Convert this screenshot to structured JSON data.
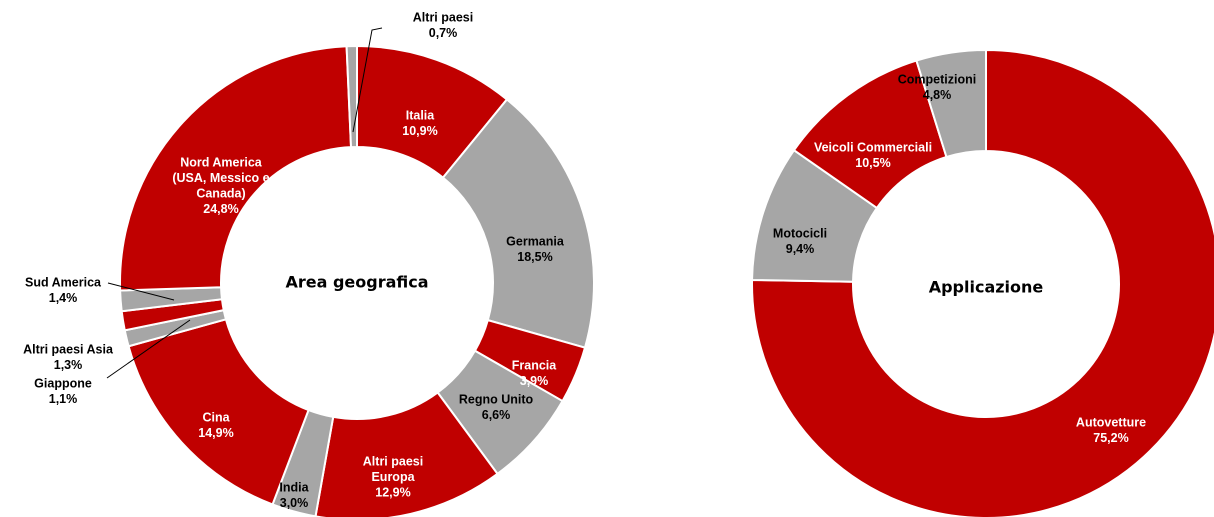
{
  "colors": {
    "red": "#C00000",
    "gray": "#A6A6A6",
    "border": "#ffffff"
  },
  "chart_data": [
    {
      "type": "pie",
      "title": "Area geografica",
      "slices": [
        {
          "label": [
            "Italia"
          ],
          "value": 10.9,
          "pct": "10,9%",
          "color": "red"
        },
        {
          "label": [
            "Germania"
          ],
          "value": 18.5,
          "pct": "18,5%",
          "color": "gray"
        },
        {
          "label": [
            "Francia"
          ],
          "value": 3.9,
          "pct": "3,9%",
          "color": "red"
        },
        {
          "label": [
            "Regno Unito"
          ],
          "value": 6.6,
          "pct": "6,6%",
          "color": "gray"
        },
        {
          "label": [
            "Altri paesi",
            "Europa"
          ],
          "value": 12.9,
          "pct": "12,9%",
          "color": "red"
        },
        {
          "label": [
            "India"
          ],
          "value": 3.0,
          "pct": "3,0%",
          "color": "gray"
        },
        {
          "label": [
            "Cina"
          ],
          "value": 14.9,
          "pct": "14,9%",
          "color": "red"
        },
        {
          "label": [
            "Giappone"
          ],
          "value": 1.1,
          "pct": "1,1%",
          "color": "gray"
        },
        {
          "label": [
            "Altri paesi Asia"
          ],
          "value": 1.3,
          "pct": "1,3%",
          "color": "red"
        },
        {
          "label": [
            "Sud America"
          ],
          "value": 1.4,
          "pct": "1,4%",
          "color": "gray"
        },
        {
          "label": [
            "Nord America",
            "(USA, Messico e",
            "Canada)"
          ],
          "value": 24.8,
          "pct": "24,8%",
          "color": "red"
        },
        {
          "label": [
            "Altri paesi"
          ],
          "value": 0.7,
          "pct": "0,7%",
          "color": "gray"
        }
      ]
    },
    {
      "type": "pie",
      "title": "Applicazione",
      "slices": [
        {
          "label": [
            "Autovetture"
          ],
          "value": 75.2,
          "pct": "75,2%",
          "color": "red"
        },
        {
          "label": [
            "Motocicli"
          ],
          "value": 9.4,
          "pct": "9,4%",
          "color": "gray"
        },
        {
          "label": [
            "Veicoli Commerciali"
          ],
          "value": 10.5,
          "pct": "10,5%",
          "color": "red"
        },
        {
          "label": [
            "Competizioni"
          ],
          "value": 4.8,
          "pct": "4,8%",
          "color": "gray"
        }
      ]
    }
  ]
}
